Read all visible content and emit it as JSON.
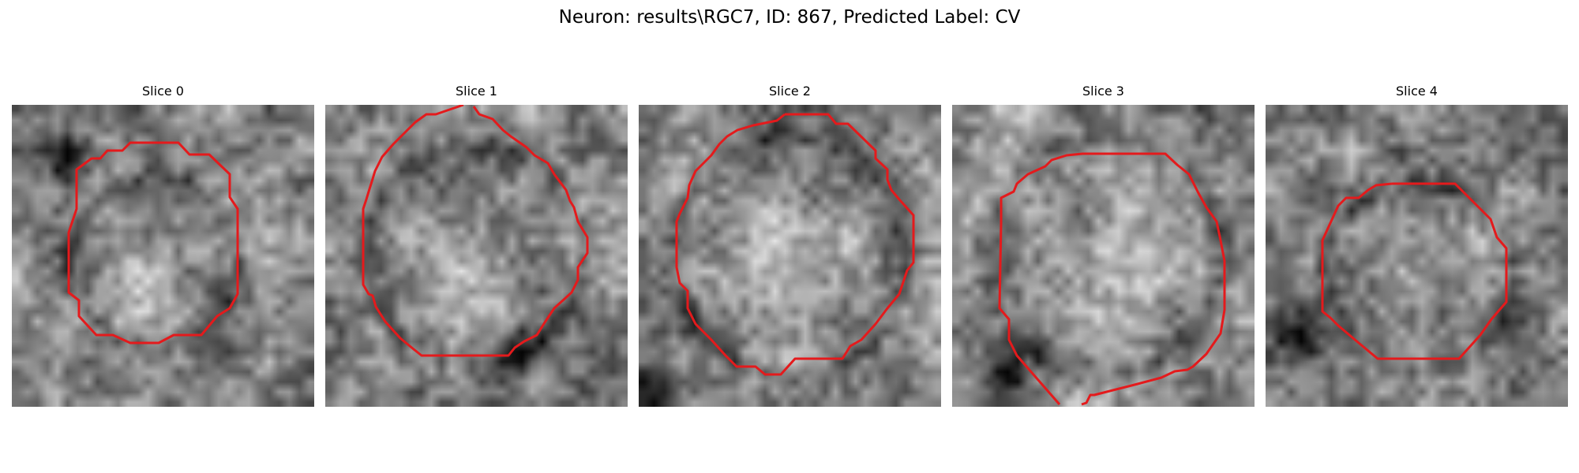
{
  "figure": {
    "title": "Neuron: results\\RGC7, ID: 867, Predicted Label: CV"
  },
  "outline_color": "#e41a1c",
  "panels": [
    {
      "title": "Slice 0",
      "seed": 11,
      "bright_center": [
        0.47,
        0.52
      ],
      "bright_radius": 0.24,
      "dark_blob": [
        0.18,
        0.17
      ]
    },
    {
      "title": "Slice 1",
      "seed": 23,
      "bright_center": [
        0.5,
        0.5
      ],
      "bright_radius": 0.33,
      "dark_blob": [
        0.65,
        0.82
      ]
    },
    {
      "title": "Slice 2",
      "seed": 37,
      "bright_center": [
        0.5,
        0.5
      ],
      "bright_radius": 0.36,
      "dark_blob": [
        0.03,
        0.97
      ]
    },
    {
      "title": "Slice 3",
      "seed": 41,
      "bright_center": [
        0.5,
        0.5
      ],
      "bright_radius": 0.36,
      "dark_blob": [
        0.15,
        0.93
      ]
    },
    {
      "title": "Slice 4",
      "seed": 53,
      "bright_center": [
        0.51,
        0.57
      ],
      "bright_radius": 0.28,
      "dark_blob": [
        0.1,
        0.77
      ]
    }
  ]
}
